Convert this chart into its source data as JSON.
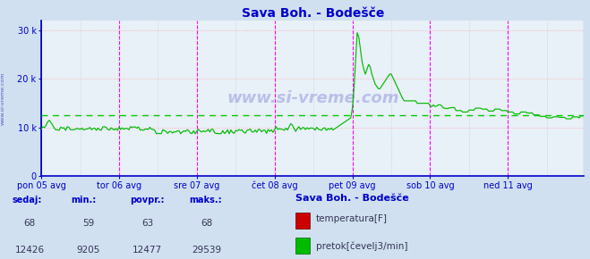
{
  "title": "Sava Boh. - Bodešče",
  "title_color": "#0000cc",
  "bg_color": "#d0e0f0",
  "plot_bg_color": "#e8f0f8",
  "footer_bg_color": "#c0d0e0",
  "axis_color": "#0000cc",
  "tick_color": "#0000cc",
  "watermark": "www.si-vreme.com",
  "watermark_color": "#0000aa",
  "x_tick_labels": [
    "pon 05 avg",
    "tor 06 avg",
    "sre 07 avg",
    "čet 08 avg",
    "pet 09 avg",
    "sob 10 avg",
    "ned 11 avg"
  ],
  "x_tick_positions": [
    0,
    48,
    96,
    144,
    192,
    240,
    288
  ],
  "total_points": 336,
  "ylim": [
    0,
    32000
  ],
  "yticks": [
    0,
    10000,
    20000,
    30000
  ],
  "ytick_labels": [
    "0",
    "10 k",
    "20 k",
    "30 k"
  ],
  "avg_line": 12477,
  "avg_line_color": "#00cc00",
  "pretok_color": "#00bb00",
  "temp_color": "#cc0000",
  "vline_magenta": "#ff00ff",
  "vline_dark": "#888800",
  "hgrid_color": "#ffaaaa",
  "vgrid_minor_color": "#cccccc",
  "footer_bold_color": "#0000cc",
  "footer_normal_color": "#333355",
  "footer_labels": [
    "sedaj:",
    "min.:",
    "povpr.:",
    "maks.:"
  ],
  "footer_values_temp": [
    "68",
    "59",
    "63",
    "68"
  ],
  "footer_values_pretok": [
    "12426",
    "9205",
    "12477",
    "29539"
  ],
  "footer_station": "Sava Boh. - Bodešče",
  "footer_temp_label": "temperatura[F]",
  "footer_pretok_label": "pretok[čevelj3/min]",
  "legend_temp_color": "#cc0000",
  "legend_pretok_color": "#00bb00"
}
